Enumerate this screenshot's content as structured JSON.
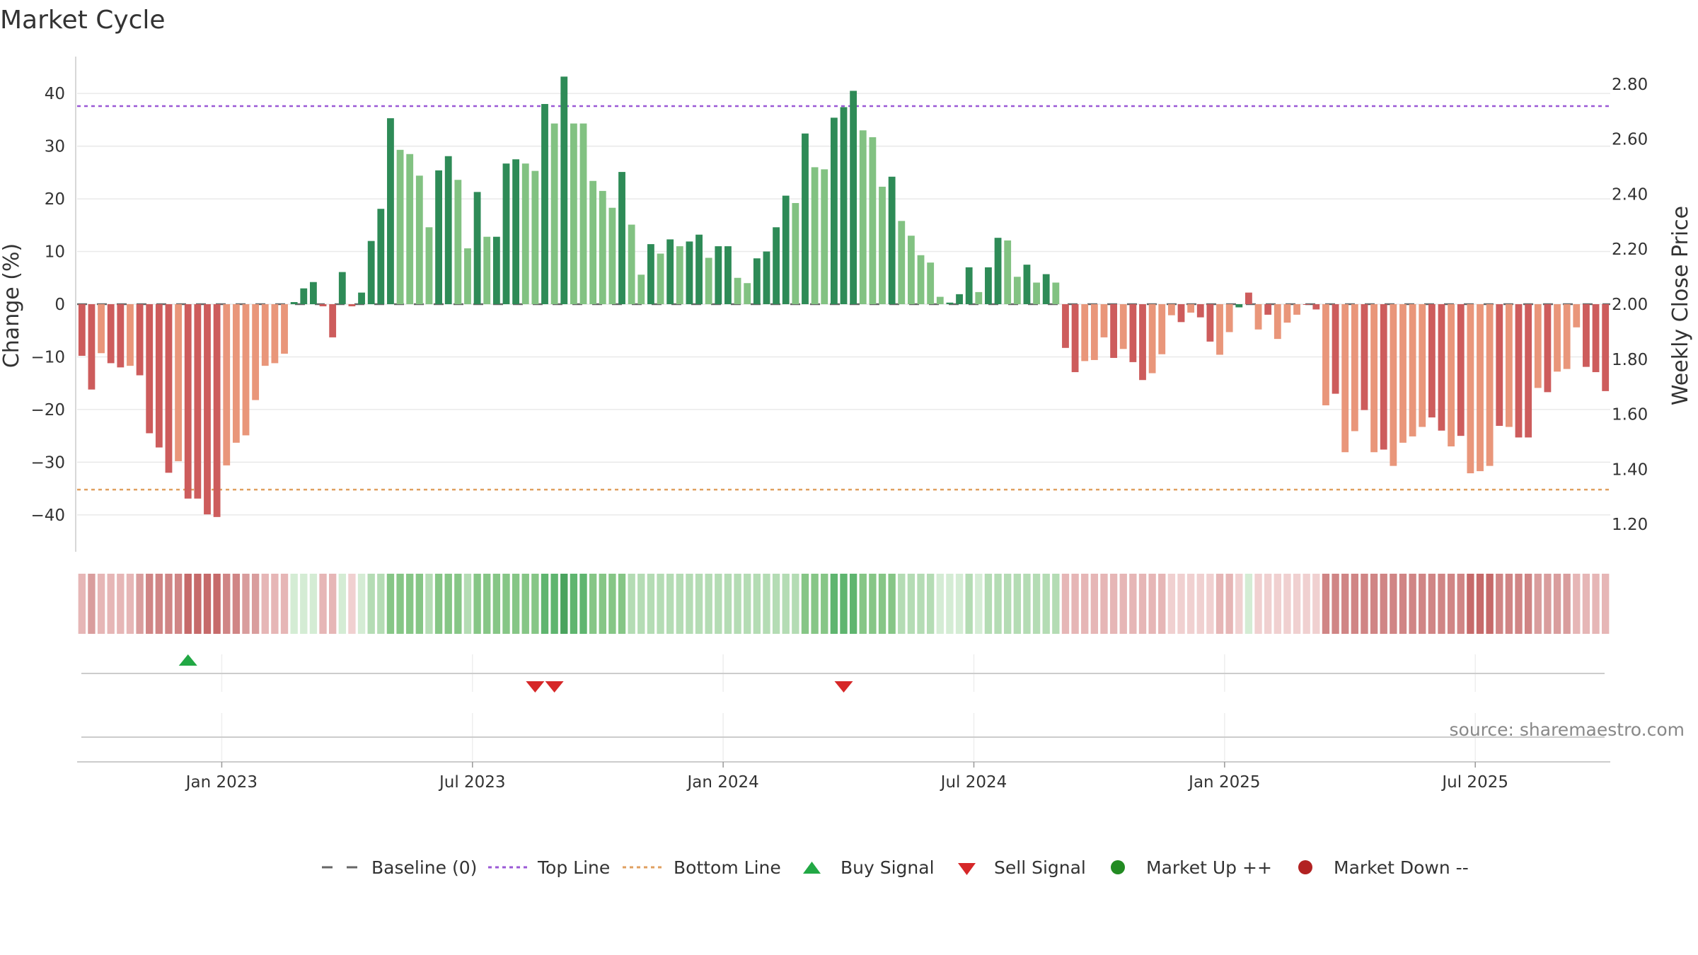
{
  "chart_data": {
    "type": "bar",
    "title": "Market Cycle",
    "ylabel": "Change (%)",
    "y2label": "Weekly Close Price",
    "ylim": [
      -47,
      47
    ],
    "y2lim": [
      1.1,
      2.9
    ],
    "yticks": [
      40,
      30,
      20,
      10,
      0,
      -10,
      -20,
      -30,
      -40
    ],
    "yticklabels": [
      "40",
      "30",
      "20",
      "10",
      "0",
      "−10",
      "−20",
      "−30",
      "−40"
    ],
    "y2ticks": [
      "2.80",
      "2.60",
      "2.40",
      "2.20",
      "2.00",
      "1.80",
      "1.60",
      "1.40",
      "1.20"
    ],
    "top_line": 37.6,
    "bottom_line": -35.2,
    "baseline": 0,
    "x_labels": [
      "Jan 2023",
      "Jul 2023",
      "Jan 2024",
      "Jul 2024",
      "Jan 2025",
      "Jul 2025"
    ],
    "x_label_weeks": [
      15,
      41,
      67,
      93,
      119,
      145
    ],
    "series": [
      {
        "values": [
          -9.8,
          -16.2,
          -9.3,
          -11.2,
          -12,
          -11.7,
          -13.5,
          -24.5,
          -27.2,
          -32,
          -29.8,
          -36.9,
          -36.9,
          -39.9,
          -40.4,
          -30.6,
          -26.3,
          -24.9,
          -18.2,
          -11.7,
          -11.2,
          -9.4,
          0.4,
          3,
          4.2,
          -0.4,
          -6.3,
          6.1,
          -0.4,
          2.2,
          12,
          18.1,
          35.3,
          29.3,
          28.5,
          24.4,
          14.6,
          25.4,
          28.1,
          23.6,
          10.6,
          21.3,
          12.8,
          12.8,
          26.7,
          27.5,
          26.7,
          25.3,
          38,
          34.3,
          43.2,
          34.3,
          34.3,
          23.4,
          21.5,
          18.3,
          25.1,
          15.1,
          5.6,
          11.4,
          9.6,
          12.3,
          11,
          11.9,
          13.2,
          8.8,
          11,
          11,
          5,
          4,
          8.7,
          10,
          14.6,
          20.6,
          19.2,
          32.4,
          26,
          25.6,
          35.4,
          37.4,
          40.5,
          33,
          31.7,
          22.3,
          24.2,
          15.8,
          13,
          9.3,
          7.9,
          1.4,
          0.3,
          1.9,
          7,
          2.3,
          7,
          12.6,
          12.1,
          5.2,
          7.5,
          4.1,
          5.7,
          4.1,
          -8.3,
          -12.9,
          -10.8,
          -10.6,
          -6.3,
          -10.2,
          -8.5,
          -11,
          -14.4,
          -13.1,
          -9.5,
          -2.1,
          -3.4,
          -1.6,
          -2.5,
          -7.1,
          -9.6,
          -5.3,
          -0.6,
          2.2,
          -4.8,
          -2,
          -6.6,
          -3.5,
          -2,
          -0.1,
          -1,
          -19.2,
          -17,
          -28.1,
          -24.1,
          -20.1,
          -28.1,
          -27.6,
          -30.7,
          -26.3,
          -25.1,
          -23.3,
          -21.5,
          -24,
          -27,
          -25,
          -32.1,
          -31.7,
          -30.7,
          -23.1,
          -23.3,
          -25.3,
          -25.3,
          -15.9,
          -16.7,
          -12.8,
          -12.3,
          -4.4,
          -11.9,
          -12.9,
          -16.5
        ],
        "shades": [
          "D",
          "D",
          "L",
          "D",
          "D",
          "L",
          "D",
          "D",
          "D",
          "D",
          "L",
          "D",
          "D",
          "D",
          "D",
          "L",
          "L",
          "L",
          "L",
          "L",
          "L",
          "L",
          "U",
          "U",
          "U",
          "D",
          "D",
          "U",
          "D",
          "U",
          "U",
          "U",
          "U",
          "L",
          "L",
          "L",
          "L",
          "U",
          "U",
          "L",
          "L",
          "U",
          "L",
          "U",
          "U",
          "U",
          "L",
          "L",
          "U",
          "L",
          "U",
          "L",
          "L",
          "L",
          "L",
          "L",
          "U",
          "L",
          "L",
          "U",
          "L",
          "U",
          "L",
          "U",
          "U",
          "L",
          "U",
          "U",
          "L",
          "L",
          "U",
          "U",
          "U",
          "U",
          "L",
          "U",
          "L",
          "L",
          "U",
          "U",
          "U",
          "L",
          "L",
          "L",
          "U",
          "L",
          "L",
          "L",
          "L",
          "L",
          "U",
          "U",
          "U",
          "L",
          "U",
          "U",
          "L",
          "L",
          "U",
          "L",
          "U",
          "L",
          "D",
          "D",
          "L",
          "L",
          "L",
          "D",
          "L",
          "D",
          "D",
          "L",
          "L",
          "L",
          "D",
          "L",
          "D",
          "D",
          "L",
          "L",
          "U",
          "D",
          "L",
          "D",
          "L",
          "L",
          "L",
          "D",
          "D",
          "L",
          "D",
          "L",
          "L",
          "D",
          "L",
          "D",
          "L",
          "L",
          "L",
          "L",
          "D",
          "D",
          "L",
          "D",
          "L",
          "L",
          "L",
          "D",
          "L",
          "D",
          "D",
          "L",
          "D",
          "L",
          "L",
          "L",
          "D",
          "D",
          "D"
        ]
      }
    ],
    "regime_strip": [
      "R2",
      "R3",
      "R2",
      "R2",
      "R2",
      "R2",
      "R3",
      "R4",
      "R4",
      "R4",
      "R4",
      "R5",
      "R5",
      "R5",
      "R5",
      "R4",
      "R4",
      "R3",
      "R3",
      "R2",
      "R2",
      "R2",
      "G1",
      "G1",
      "G1",
      "R2",
      "R2",
      "G1",
      "R1",
      "G1",
      "G2",
      "G2",
      "G3",
      "G3",
      "G3",
      "G3",
      "G2",
      "G3",
      "G3",
      "G3",
      "G2",
      "G3",
      "G3",
      "G3",
      "G3",
      "G3",
      "G3",
      "G3",
      "G4",
      "G4",
      "G5",
      "G4",
      "G4",
      "G3",
      "G3",
      "G3",
      "G3",
      "G2",
      "G2",
      "G2",
      "G2",
      "G2",
      "G2",
      "G2",
      "G2",
      "G2",
      "G2",
      "G2",
      "G2",
      "G2",
      "G2",
      "G2",
      "G2",
      "G2",
      "G2",
      "G3",
      "G3",
      "G3",
      "G4",
      "G4",
      "G4",
      "G3",
      "G3",
      "G3",
      "G3",
      "G2",
      "G2",
      "G2",
      "G2",
      "G1",
      "G1",
      "G1",
      "G2",
      "G1",
      "G2",
      "G2",
      "G2",
      "G2",
      "G2",
      "G2",
      "G2",
      "G2",
      "R2",
      "R2",
      "R2",
      "R2",
      "R2",
      "R2",
      "R2",
      "R2",
      "R2",
      "R2",
      "R2",
      "R1",
      "R1",
      "R1",
      "R1",
      "R1",
      "R2",
      "R2",
      "R1",
      "G1",
      "R1",
      "R1",
      "R1",
      "R1",
      "R1",
      "R1",
      "R1",
      "R4",
      "R4",
      "R4",
      "R4",
      "R4",
      "R4",
      "R4",
      "R4",
      "R4",
      "R4",
      "R4",
      "R4",
      "R4",
      "R4",
      "R4",
      "R5",
      "R5",
      "R5",
      "R4",
      "R4",
      "R4",
      "R4",
      "R3",
      "R3",
      "R3",
      "R3",
      "R2",
      "R2",
      "R2",
      "R2"
    ],
    "buy_signals": [
      11
    ],
    "sell_signals": [
      47,
      49,
      79
    ],
    "colors": {
      "U": "#2e8b57",
      "L": "#82c282",
      "D": "#cd5c5c",
      "E": "#e9967a",
      "G1": "#d4ecd4",
      "G2": "#b4dcb4",
      "G3": "#86c686",
      "G4": "#5fb56f",
      "G5": "#4aa35e",
      "R1": "#f0d0d0",
      "R2": "#e6b6b6",
      "R3": "#d99d9d",
      "R4": "#d08585",
      "R5": "#c66a6a",
      "top_line": "#9b59d6",
      "bottom_line": "#e0a060",
      "baseline": "#666666",
      "buy": "#22a845",
      "sell": "#d62728",
      "market_up": "#228b22",
      "market_down": "#b22222"
    },
    "legend": {
      "placement": "bottom-center",
      "baseline": "Baseline (0)",
      "top_line": "Top Line",
      "bottom_line": "Bottom Line",
      "buy": "Buy Signal",
      "sell": "Sell Signal",
      "market_up": "Market Up ++",
      "market_down": "Market Down --"
    },
    "source": "source: sharemaestro.com"
  }
}
